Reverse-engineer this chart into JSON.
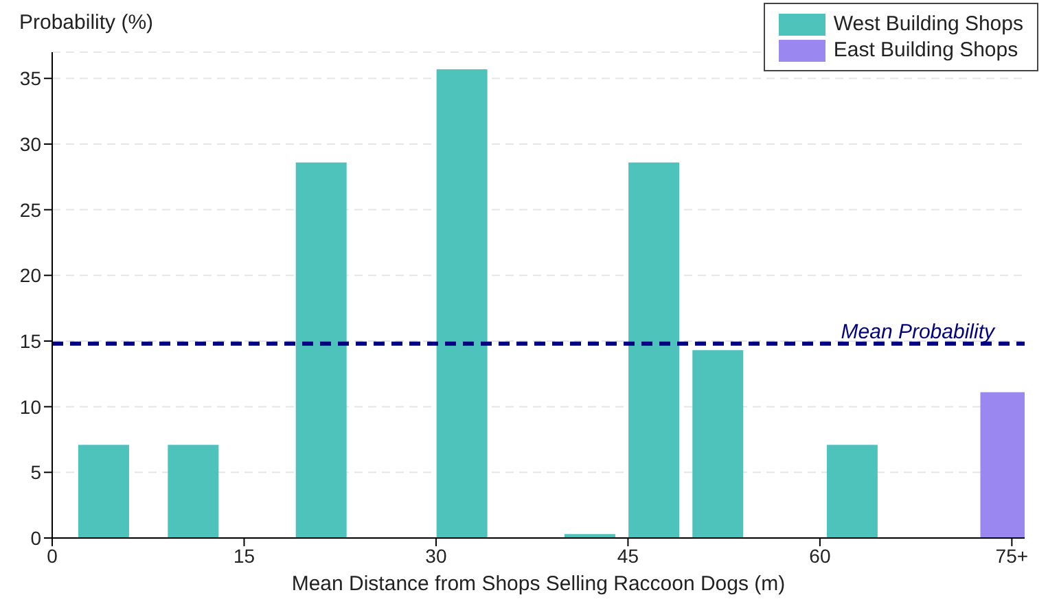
{
  "chart_data": {
    "type": "bar",
    "xlabel": "Mean Distance from Shops Selling Raccoon Dogs (m)",
    "ylabel": "Probability (%)",
    "series": [
      {
        "name": "West Building Shops",
        "color": "#4dc3bc",
        "x": [
          4,
          11,
          21,
          32,
          42,
          47,
          52,
          62.5
        ],
        "values": [
          7.1,
          7.1,
          28.6,
          35.7,
          0.3,
          28.6,
          14.3,
          7.1
        ]
      },
      {
        "name": "East Building Shops",
        "color": "#9b87f0",
        "x": [
          74.5
        ],
        "values": [
          11.1
        ]
      }
    ],
    "xlim": [
      0,
      76
    ],
    "xticks": [
      0,
      15,
      30,
      45,
      60,
      {
        "value": 75,
        "label": "75+"
      }
    ],
    "ylim": [
      0,
      37
    ],
    "yticks": [
      0,
      5,
      10,
      15,
      20,
      25,
      30,
      35
    ],
    "grid": "y",
    "legend": "top right",
    "ref_lines": [
      {
        "axis": "y",
        "value": 14.8,
        "label": "Mean Probability",
        "color": "#000080",
        "line_style": "dashed"
      }
    ]
  }
}
